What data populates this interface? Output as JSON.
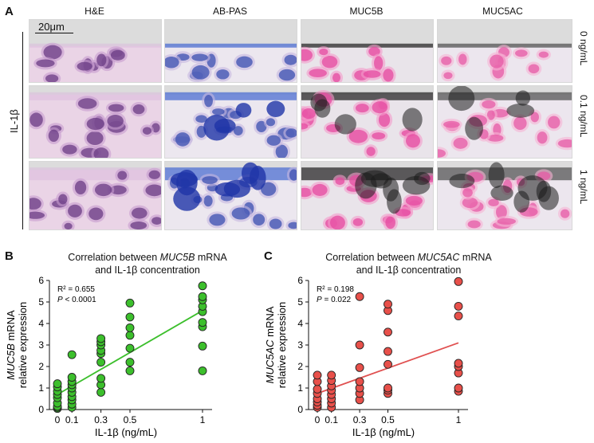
{
  "panel_a": {
    "letter": "A",
    "column_titles": [
      "H&E",
      "AB-PAS",
      "MUC5B",
      "MUC5AC"
    ],
    "row_labels": [
      "0 ng/mL",
      "0.1 ng/mL",
      "1 ng/mL"
    ],
    "treatment_label": "IL-1β",
    "scale_bar": "20μm"
  },
  "chart_data": [
    {
      "type": "scatter",
      "panel_letter": "B",
      "title_prefix": "Correlation between ",
      "title_gene": "MUC5B",
      "title_suffix": " mRNA",
      "title_line2": "and IL-1β concentration",
      "xlabel": "IL-1β (ng/mL)",
      "ylabel_gene": "MUC5B",
      "ylabel_rest": " mRNA",
      "ylabel_line2": "relative expression",
      "x_ticks": [
        "0",
        "0.1",
        "0.3",
        "0.5",
        "1"
      ],
      "y_ticks": [
        "0",
        "1",
        "2",
        "3",
        "4",
        "5",
        "6"
      ],
      "ylim": [
        0,
        6
      ],
      "stat_r2": "R² = 0.655",
      "stat_p_label": "P",
      "stat_p_value": " < 0.0001",
      "point_color": "#3cbf2c",
      "line_color": "#3cbf2c",
      "fit": {
        "x": [
          0,
          1
        ],
        "y": [
          0.7,
          4.6
        ]
      },
      "points": [
        {
          "x": 0,
          "y": [
            0.05,
            0.1,
            0.15,
            0.3,
            0.55,
            0.7,
            0.85,
            1.05,
            1.2
          ]
        },
        {
          "x": 0.1,
          "y": [
            0.1,
            0.25,
            0.45,
            0.6,
            0.8,
            1.0,
            1.15,
            1.3,
            1.5,
            2.55
          ]
        },
        {
          "x": 0.3,
          "y": [
            0.8,
            1.15,
            1.45,
            2.2,
            2.6,
            2.75,
            3.0,
            3.15,
            3.3
          ]
        },
        {
          "x": 0.5,
          "y": [
            1.8,
            2.2,
            2.85,
            3.45,
            3.8,
            4.3,
            4.95
          ]
        },
        {
          "x": 1,
          "y": [
            1.8,
            2.95,
            3.85,
            4.05,
            4.55,
            4.8,
            5.1,
            5.25,
            5.75
          ]
        }
      ]
    },
    {
      "type": "scatter",
      "panel_letter": "C",
      "title_prefix": "Correlation between ",
      "title_gene": "MUC5AC",
      "title_suffix": " mRNA",
      "title_line2": "and IL-1β concentration",
      "xlabel": "IL-1β (ng/mL)",
      "ylabel_gene": "MUC5AC",
      "ylabel_rest": " mRNA",
      "ylabel_line2": "relative expression",
      "x_ticks": [
        "0",
        "0.1",
        "0.3",
        "0.5",
        "1"
      ],
      "y_ticks": [
        "0",
        "1",
        "2",
        "3",
        "4",
        "5",
        "6"
      ],
      "ylim": [
        0,
        6
      ],
      "stat_r2": "R² = 0.198",
      "stat_p_label": "P",
      "stat_p_value": " = 0.022",
      "point_color": "#e8504a",
      "line_color": "#e05050",
      "fit": {
        "x": [
          0,
          1
        ],
        "y": [
          0.75,
          3.1
        ]
      },
      "points": [
        {
          "x": 0,
          "y": [
            0.1,
            0.2,
            0.35,
            0.5,
            0.75,
            0.95,
            1.3,
            1.6
          ]
        },
        {
          "x": 0.1,
          "y": [
            0.1,
            0.3,
            0.5,
            0.7,
            0.9,
            1.1,
            1.35,
            1.6
          ]
        },
        {
          "x": 0.3,
          "y": [
            0.45,
            0.75,
            1.0,
            1.3,
            1.95,
            3.0,
            5.25
          ]
        },
        {
          "x": 0.5,
          "y": [
            0.75,
            0.9,
            1.0,
            2.1,
            2.7,
            3.6,
            4.6,
            4.9
          ]
        },
        {
          "x": 1,
          "y": [
            0.85,
            1.0,
            1.7,
            2.0,
            2.15,
            4.35,
            4.8,
            5.95
          ]
        }
      ]
    }
  ]
}
